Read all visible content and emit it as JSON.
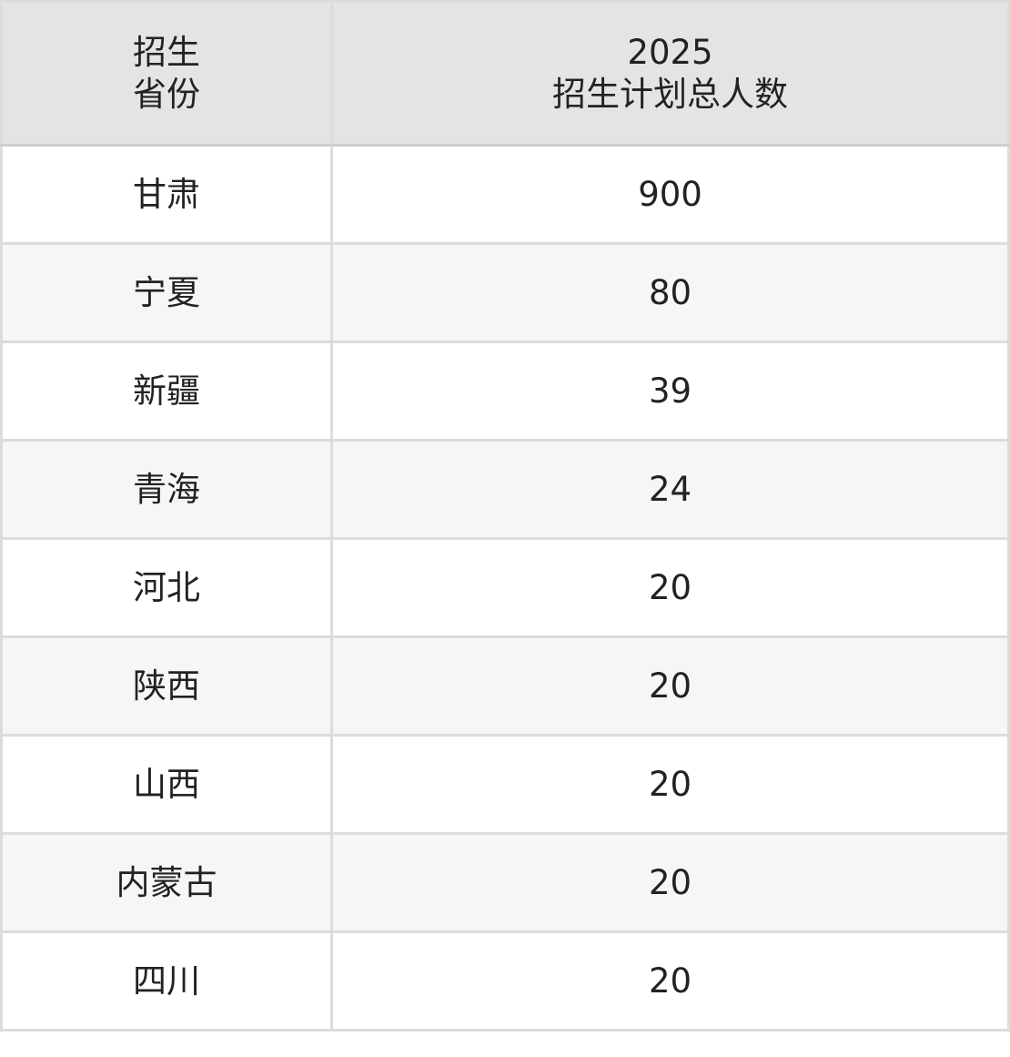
{
  "table": {
    "headers": [
      [
        "招生",
        "省份"
      ],
      [
        "2025",
        "招生计划总人数"
      ]
    ],
    "rows": [
      {
        "province": "甘肃",
        "total": "900"
      },
      {
        "province": "宁夏",
        "total": "80"
      },
      {
        "province": "新疆",
        "total": "39"
      },
      {
        "province": "青海",
        "total": "24"
      },
      {
        "province": "河北",
        "total": "20"
      },
      {
        "province": "陕西",
        "total": "20"
      },
      {
        "province": "山西",
        "total": "20"
      },
      {
        "province": "内蒙古",
        "total": "20"
      },
      {
        "province": "四川",
        "total": "20"
      }
    ]
  }
}
